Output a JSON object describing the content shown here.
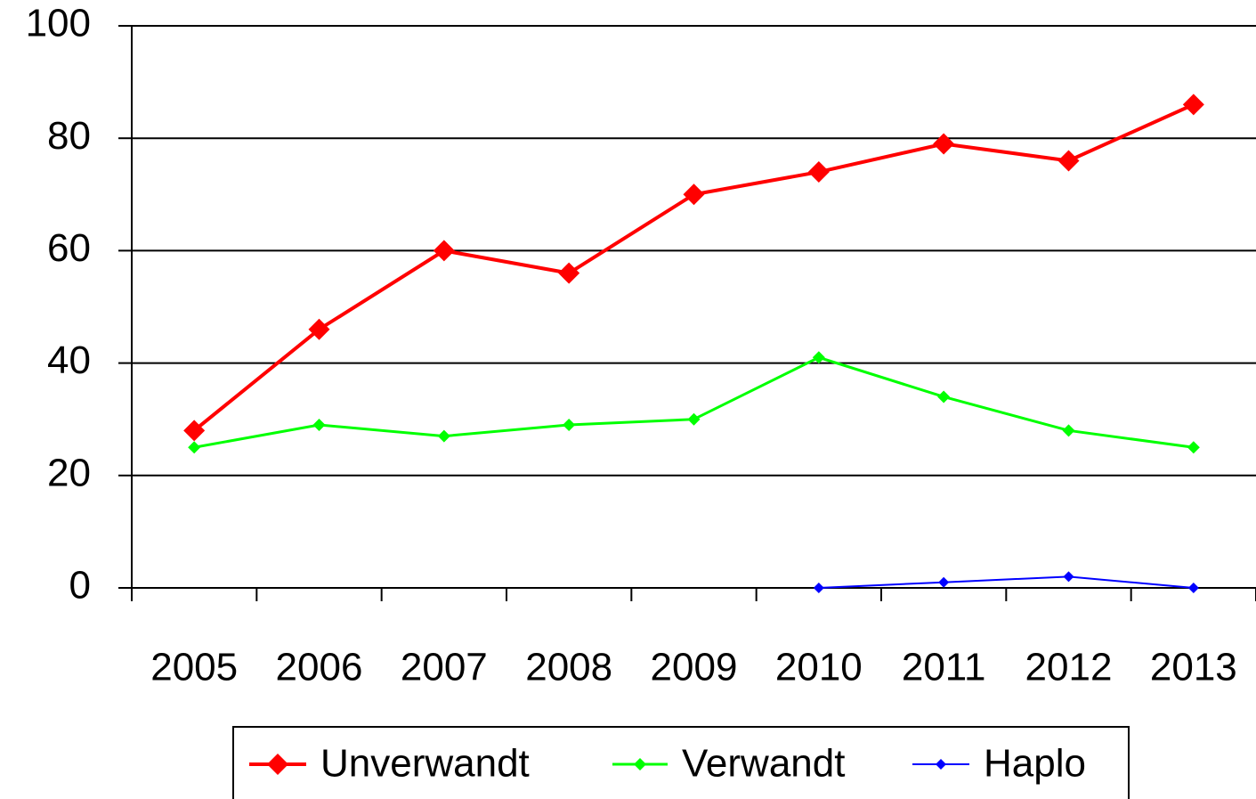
{
  "chart_data": {
    "type": "line",
    "categories": [
      "2005",
      "2006",
      "2007",
      "2008",
      "2009",
      "2010",
      "2011",
      "2012",
      "2013"
    ],
    "series": [
      {
        "name": "Unverwandt",
        "color": "#ff0000",
        "values": [
          28,
          46,
          60,
          56,
          70,
          74,
          79,
          76,
          86
        ]
      },
      {
        "name": "Verwandt",
        "color": "#00ff00",
        "values": [
          25,
          29,
          27,
          29,
          30,
          41,
          34,
          28,
          25
        ]
      },
      {
        "name": "Haplo",
        "color": "#0000ff",
        "values": [
          null,
          null,
          null,
          null,
          null,
          0,
          1,
          2,
          0
        ]
      }
    ],
    "ylim": [
      0,
      100
    ],
    "yticks": [
      0,
      20,
      40,
      60,
      80,
      100
    ],
    "grid": true,
    "legend": "bottom"
  }
}
